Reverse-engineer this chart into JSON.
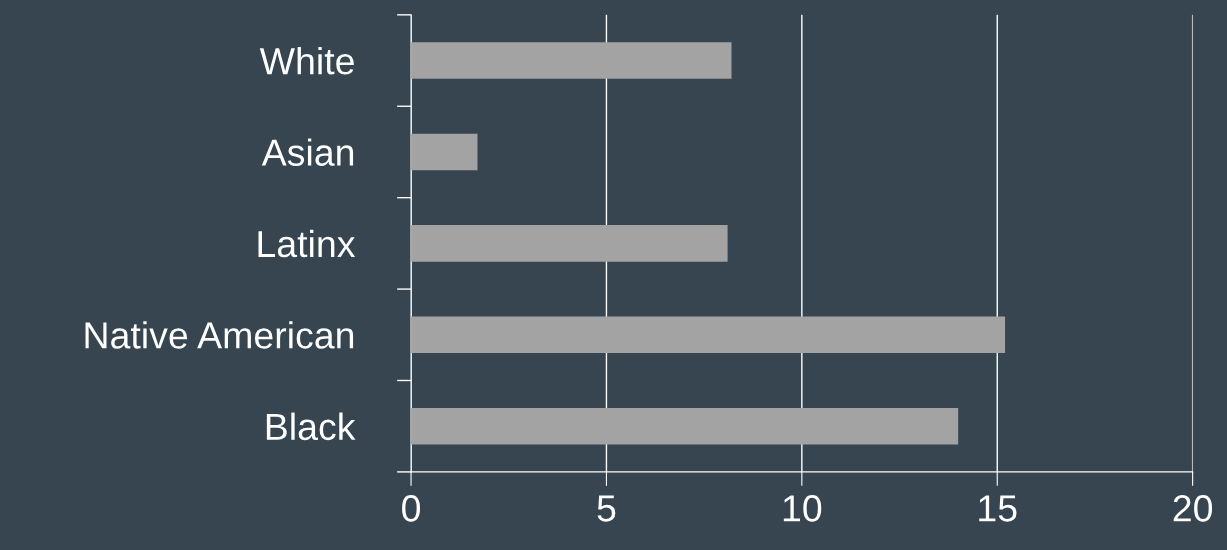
{
  "chart_data": {
    "type": "bar",
    "orientation": "horizontal",
    "categories": [
      "White",
      "Asian",
      "Latinx",
      "Native American",
      "Black"
    ],
    "values": [
      8.2,
      1.7,
      8.1,
      15.2,
      14.0
    ],
    "color": "#a3a3a3",
    "xlim": [
      0,
      20
    ],
    "xticks": [
      0,
      5,
      10,
      15,
      20
    ],
    "grid": "x"
  }
}
